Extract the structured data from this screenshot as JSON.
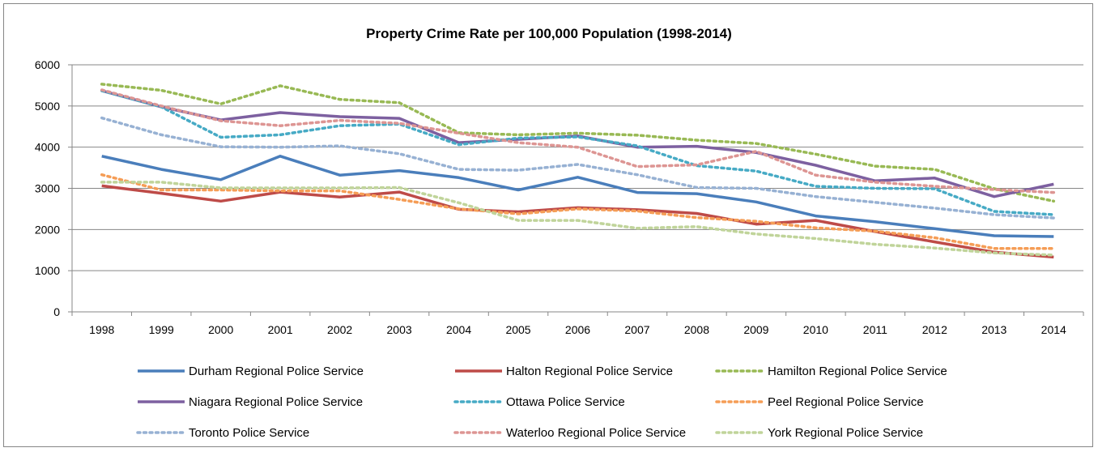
{
  "chart_data": {
    "type": "line",
    "title": "Property Crime Rate per 100,000 Population (1998-2014)",
    "xlabel": "",
    "ylabel": "",
    "categories": [
      "1998",
      "1999",
      "2000",
      "2001",
      "2002",
      "2003",
      "2004",
      "2005",
      "2006",
      "2007",
      "2008",
      "2009",
      "2010",
      "2011",
      "2012",
      "2013",
      "2014"
    ],
    "ylim": [
      0,
      6000
    ],
    "yticks": [
      0,
      1000,
      2000,
      3000,
      4000,
      5000,
      6000
    ],
    "grid": true,
    "legend_position": "bottom",
    "series": [
      {
        "name": "Durham Regional Police Service",
        "color": "#4a7ebb",
        "style": "solid",
        "values": [
          3780,
          3460,
          3210,
          3780,
          3320,
          3430,
          3260,
          2960,
          3270,
          2900,
          2870,
          2670,
          2330,
          2190,
          2020,
          1850,
          1830
        ]
      },
      {
        "name": "Halton Regional Police Service",
        "color": "#be4b48",
        "style": "solid",
        "values": [
          3060,
          2880,
          2690,
          2910,
          2790,
          2910,
          2490,
          2430,
          2530,
          2480,
          2390,
          2130,
          2220,
          1950,
          1700,
          1450,
          1330
        ]
      },
      {
        "name": "Hamilton Regional Police Service",
        "color": "#98b954",
        "style": "dotted",
        "values": [
          5530,
          5380,
          5050,
          5490,
          5160,
          5080,
          4350,
          4300,
          4340,
          4290,
          4170,
          4090,
          3830,
          3540,
          3460,
          2990,
          2690
        ]
      },
      {
        "name": "Niagara Regional Police Service",
        "color": "#7d60a0",
        "style": "solid",
        "values": [
          5370,
          4980,
          4660,
          4840,
          4740,
          4700,
          4110,
          4190,
          4270,
          4000,
          4020,
          3870,
          3560,
          3180,
          3250,
          2800,
          3100
        ]
      },
      {
        "name": "Ottawa Police Service",
        "color": "#46aac5",
        "style": "dotted",
        "values": [
          5370,
          4980,
          4240,
          4300,
          4520,
          4560,
          4060,
          4220,
          4250,
          4030,
          3550,
          3420,
          3050,
          3000,
          2990,
          2440,
          2360
        ]
      },
      {
        "name": "Peel Regional Police Service",
        "color": "#f59d56",
        "style": "dotted",
        "values": [
          3330,
          2960,
          2960,
          2940,
          2940,
          2730,
          2500,
          2380,
          2500,
          2450,
          2290,
          2200,
          2040,
          1960,
          1800,
          1540,
          1540
        ]
      },
      {
        "name": "Toronto Police Service",
        "color": "#97b1d3",
        "style": "dotted",
        "values": [
          4710,
          4300,
          4010,
          4000,
          4030,
          3840,
          3460,
          3440,
          3580,
          3330,
          3020,
          3000,
          2800,
          2660,
          2520,
          2360,
          2280
        ]
      },
      {
        "name": "Waterloo Regional Police Service",
        "color": "#dd9593",
        "style": "dotted",
        "values": [
          5390,
          5000,
          4640,
          4520,
          4650,
          4580,
          4340,
          4110,
          4000,
          3530,
          3570,
          3900,
          3320,
          3150,
          3050,
          2970,
          2900
        ]
      },
      {
        "name": "York Regional Police Service",
        "color": "#c0d49a",
        "style": "dotted",
        "values": [
          3150,
          3150,
          3010,
          3010,
          3010,
          3020,
          2650,
          2220,
          2220,
          2030,
          2070,
          1890,
          1780,
          1640,
          1550,
          1430,
          1380
        ]
      }
    ]
  }
}
